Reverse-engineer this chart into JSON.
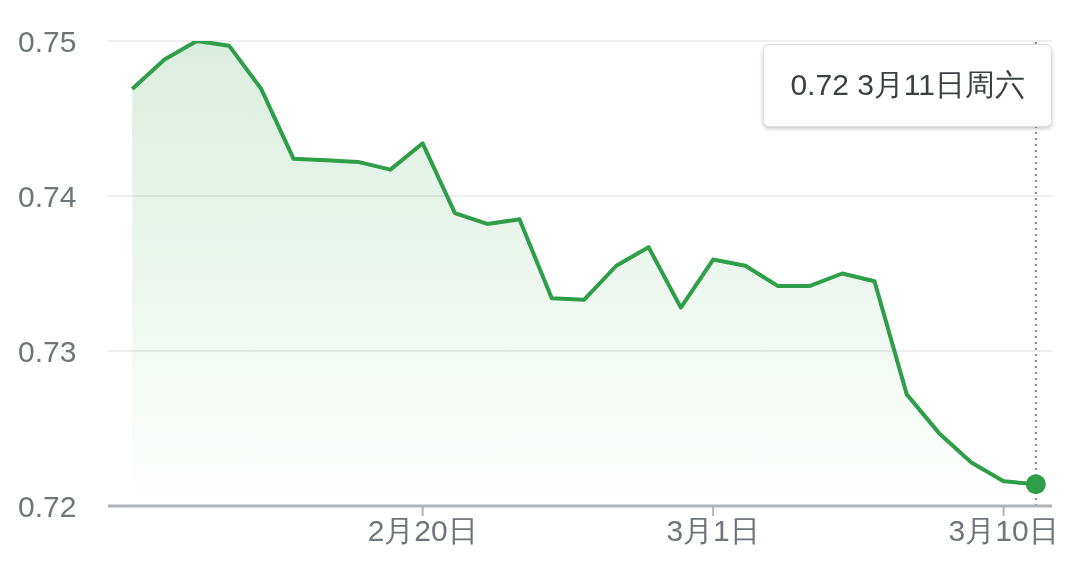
{
  "chart_data": {
    "type": "area",
    "x": [
      "--02-11",
      "--02-12",
      "--02-13",
      "--02-14",
      "--02-15",
      "--02-16",
      "--02-17",
      "--02-18",
      "--02-19",
      "--02-20",
      "--02-21",
      "--02-22",
      "--02-23",
      "--02-24",
      "--02-25",
      "--02-26",
      "--02-27",
      "--02-28",
      "--03-01",
      "--03-02",
      "--03-03",
      "--03-04",
      "--03-05",
      "--03-06",
      "--03-07",
      "--03-08",
      "--03-09",
      "--03-10",
      "--03-11"
    ],
    "series": [
      {
        "color": "#2e9e48",
        "values": [
          0.7469,
          0.7488,
          0.75,
          0.7497,
          0.7469,
          0.7424,
          0.7423,
          0.7422,
          0.7417,
          0.7434,
          0.7389,
          0.7382,
          0.7385,
          0.7334,
          0.7333,
          0.7355,
          0.7367,
          0.7328,
          0.7359,
          0.7355,
          0.7342,
          0.7342,
          0.735,
          0.7345,
          0.7272,
          0.7247,
          0.7228,
          0.7216,
          0.7214
        ]
      }
    ],
    "xlim": [
      "--02-10T06:00",
      "--03-11T12:00"
    ],
    "xticks": [
      {
        "value": "--02-20",
        "label": "2月20日"
      },
      {
        "value": "--03-01",
        "label": "3月1日"
      },
      {
        "value": "--03-10",
        "label": "3月10日"
      }
    ],
    "ylim": [
      0.72,
      0.75
    ],
    "yticks": [
      0.72,
      0.73,
      0.74,
      0.75
    ],
    "grid": "y",
    "legend": false,
    "marker": "none",
    "ref_lines": [
      {
        "axis": "x",
        "value": "--03-11",
        "color": "#888888",
        "line_style": "dotted"
      }
    ],
    "annotations": [
      "0.72 3月11日周六"
    ]
  }
}
